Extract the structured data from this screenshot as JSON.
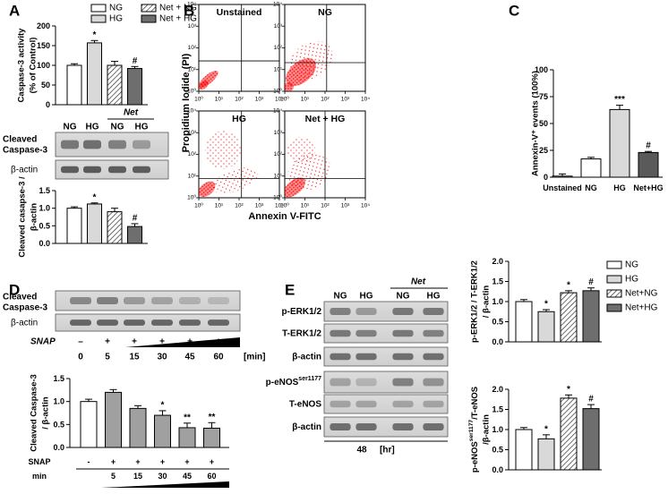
{
  "panel_labels": [
    "A",
    "B",
    "C",
    "D",
    "E"
  ],
  "blot_a": {
    "lanes": [
      "NG",
      "HG",
      "NG",
      "HG"
    ],
    "group": "Net",
    "rows": [
      [
        "Cleaved",
        "Caspase-3"
      ],
      [
        "β-actin"
      ]
    ]
  },
  "blot_d": {
    "rows": [
      [
        "Cleaved",
        "Caspase-3"
      ],
      [
        "β-actin"
      ]
    ],
    "treatment": "SNAP",
    "signs": [
      "–",
      "+",
      "+",
      "+",
      "+",
      "+"
    ],
    "times": [
      0,
      5,
      15,
      30,
      45,
      60
    ],
    "unit": "[min]"
  },
  "blot_e": {
    "lanes": [
      "NG",
      "HG",
      "NG",
      "HG"
    ],
    "group": "Net",
    "rows": [
      {
        "text": "p-ERK1/2"
      },
      {
        "text": "T-ERK1/2"
      },
      {
        "text": "β-actin"
      },
      {
        "text": "p-eNOS",
        "sup": "ser1177"
      },
      {
        "text": "T-eNOS"
      },
      {
        "text": "β-actin"
      }
    ],
    "time": 48,
    "unit": "[hr]"
  },
  "chart_data": [
    {
      "type": "bar",
      "ylabel": [
        "Caspase-3 activity",
        "(% of Control)"
      ],
      "categories": [
        "NG",
        "HG",
        "Net + NG",
        "Net + HG"
      ],
      "values": [
        100,
        157,
        100,
        92
      ],
      "errors": [
        4,
        6,
        10,
        5
      ],
      "fills": [
        "#ffffff",
        "#d9d9d9",
        "hatch",
        "#6e6e6e"
      ],
      "annotations": [
        null,
        "*",
        null,
        "#"
      ],
      "ylim": [
        0,
        200
      ],
      "yticks": [
        0,
        50,
        100,
        150,
        200
      ],
      "legend": "top-right"
    },
    {
      "type": "bar",
      "ylabel": [
        "Cleaved casapse-3 /",
        "β-actin"
      ],
      "values": [
        1.0,
        1.12,
        0.9,
        0.48
      ],
      "errors": [
        0.04,
        0.03,
        0.1,
        0.08
      ],
      "fills": [
        "#ffffff",
        "#d9d9d9",
        "hatch",
        "#6e6e6e"
      ],
      "annotations": [
        null,
        "*",
        null,
        "#"
      ],
      "ylim": [
        0,
        1.5
      ],
      "yticks": [
        {
          "value": 0,
          "label": "0.0"
        },
        {
          "value": 0.5,
          "label": "0.5"
        },
        {
          "value": 1,
          "label": "1.0"
        },
        {
          "value": 1.5,
          "label": "1.5"
        }
      ]
    },
    {
      "type": "flow",
      "panels": [
        "Unstained",
        "NG",
        "HG",
        "Net + HG"
      ],
      "xlabel": "Annexin V-FITC",
      "ylabel": "Propidium Iodide (PI)",
      "log": true,
      "color": "#ff0000",
      "xlim": [
        1,
        10000
      ],
      "ylim": [
        1,
        10000
      ],
      "xticks": [
        {
          "value": 1,
          "label": "10⁰"
        },
        {
          "value": 10,
          "label": "10¹"
        },
        {
          "value": 100,
          "label": "10²"
        },
        {
          "value": 1000,
          "label": "10³"
        },
        {
          "value": 10000,
          "label": "10⁴"
        }
      ],
      "yticks": [
        {
          "value": 1,
          "label": "10⁰"
        },
        {
          "value": 10,
          "label": "10¹"
        },
        {
          "value": 100,
          "label": "10²"
        },
        {
          "value": 1000,
          "label": "10³"
        },
        {
          "value": 10000,
          "label": "10⁴"
        }
      ]
    },
    {
      "type": "bar",
      "ylabel": [
        "Annexin-V⁺ events (100%)"
      ],
      "categories": [
        "Unstained",
        "NG",
        "HG",
        "Net+HG"
      ],
      "values": [
        1,
        17,
        63,
        23
      ],
      "errors": [
        2,
        1.5,
        4,
        1
      ],
      "fills": [
        "#ffffff",
        "#ffffff",
        "#d9d9d9",
        "#5a5a5a"
      ],
      "annotations": [
        null,
        null,
        "***",
        "#"
      ],
      "ylim": [
        0,
        100
      ],
      "yticks": [
        0,
        25,
        50,
        75,
        100
      ]
    },
    {
      "type": "bar",
      "ylabel": [
        "Cleaved Caspase-3",
        "/ β-actin"
      ],
      "categories": [
        null,
        5,
        15,
        30,
        45,
        60
      ],
      "snap": [
        "-",
        "+",
        "+",
        "+",
        "+",
        "+"
      ],
      "xrow_labels": [
        "SNAP",
        "min"
      ],
      "values": [
        1.0,
        1.2,
        0.85,
        0.7,
        0.43,
        0.42
      ],
      "errors": [
        0.05,
        0.06,
        0.06,
        0.1,
        0.1,
        0.12
      ],
      "fills": [
        "#ffffff",
        "#a0a0a0",
        "#a0a0a0",
        "#a0a0a0",
        "#a0a0a0",
        "#a0a0a0"
      ],
      "annotations": [
        null,
        null,
        null,
        "*",
        "**",
        "**"
      ],
      "ylim": [
        0,
        1.5
      ],
      "yticks": [
        {
          "value": 0,
          "label": "0.0"
        },
        {
          "value": 0.5,
          "label": "0.5"
        },
        {
          "value": 1,
          "label": "1.0"
        },
        {
          "value": 1.5,
          "label": "1.5"
        }
      ]
    },
    {
      "type": "bar",
      "ylabel": [
        "p-ERK1/2 / T-ERK1/2",
        "/ β-actin"
      ],
      "categories": [
        "NG",
        "HG",
        "Net+NG",
        "Net+HG"
      ],
      "values": [
        1.0,
        0.75,
        1.22,
        1.27
      ],
      "errors": [
        0.05,
        0.05,
        0.05,
        0.07
      ],
      "fills": [
        "#ffffff",
        "#d9d9d9",
        "hatch",
        "#6e6e6e"
      ],
      "annotations": [
        null,
        "*",
        "*",
        "#"
      ],
      "ylim": [
        0,
        2
      ],
      "yticks": [
        {
          "value": 0,
          "label": "0.0"
        },
        {
          "value": 0.5,
          "label": "0.5"
        },
        {
          "value": 1,
          "label": "1.0"
        },
        {
          "value": 1.5,
          "label": "1.5"
        },
        {
          "value": 2,
          "label": "2.0"
        }
      ],
      "legend": "top-right"
    },
    {
      "type": "bar",
      "ylabel": [
        {
          "text": "p-eNOS",
          "sup": "ser1177",
          "tail": "/T-eNOS"
        },
        "/β-actin"
      ],
      "values": [
        1.0,
        0.77,
        1.78,
        1.52
      ],
      "errors": [
        0.05,
        0.1,
        0.08,
        0.1
      ],
      "fills": [
        "#ffffff",
        "#d9d9d9",
        "hatch",
        "#6e6e6e"
      ],
      "annotations": [
        null,
        "*",
        "*",
        "#"
      ],
      "ylim": [
        0,
        2
      ],
      "yticks": [
        {
          "value": 0,
          "label": "0.0"
        },
        {
          "value": 0.5,
          "label": "0.5"
        },
        {
          "value": 1,
          "label": "1.0"
        },
        {
          "value": 1.5,
          "label": "1.5"
        },
        {
          "value": 2,
          "label": "2.0"
        }
      ]
    }
  ]
}
